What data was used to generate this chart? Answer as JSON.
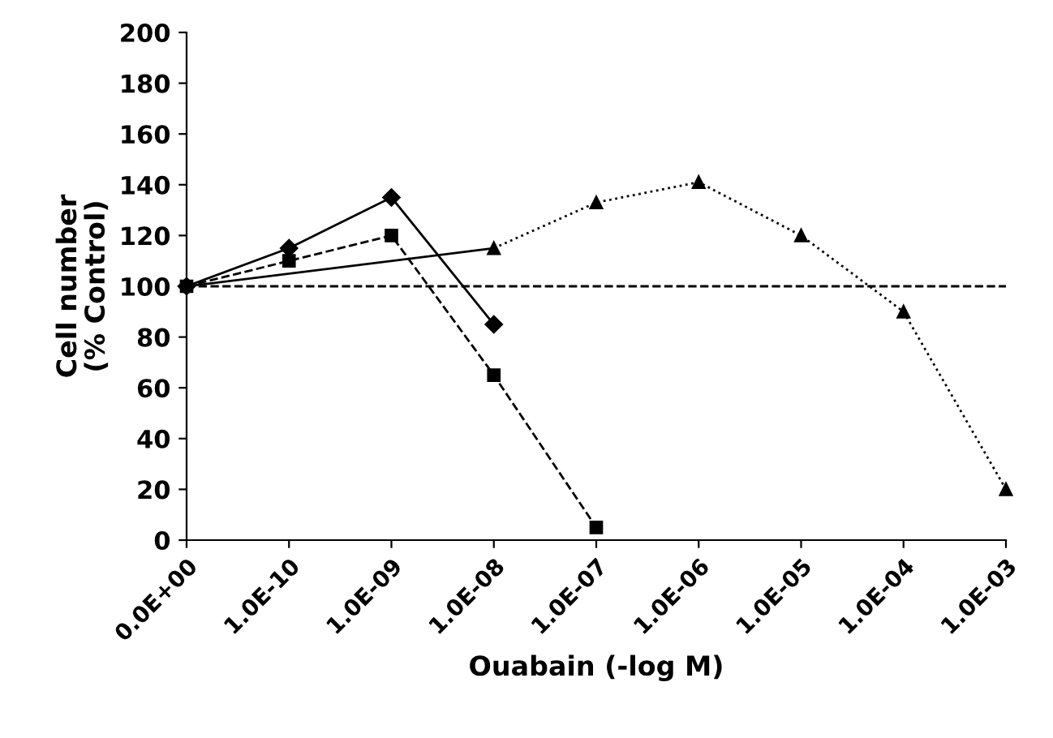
{
  "chart_data": {
    "type": "line",
    "xlabel": "Ouabain (-log M)",
    "ylabel": "Cell number\n(% Control)",
    "categories": [
      "0.0E+00",
      "1.0E-10",
      "1.0E-09",
      "1.0E-08",
      "1.0E-07",
      "1.0E-06",
      "1.0E-05",
      "1.0E-04",
      "1.0E-03"
    ],
    "series": [
      {
        "color": "#000000",
        "marker": "diamond",
        "line_style": "solid",
        "values": [
          100,
          115,
          135,
          85,
          null,
          null,
          null,
          null,
          null
        ]
      },
      {
        "color": "#000000",
        "marker": "square",
        "line_style": "dashed",
        "values": [
          100,
          110,
          120,
          65,
          5,
          null,
          null,
          null,
          null
        ]
      },
      {
        "color": "#000000",
        "line_style": "solid",
        "values": [
          100,
          null,
          null,
          115,
          null,
          null,
          null,
          null,
          null
        ]
      },
      {
        "color": "#000000",
        "marker": "triangle",
        "line_style": "dotted",
        "values": [
          null,
          null,
          null,
          115,
          133,
          141,
          120,
          90,
          20
        ]
      }
    ],
    "ylim": [
      0,
      200
    ],
    "yticks": [
      0,
      20,
      40,
      60,
      80,
      100,
      120,
      140,
      160,
      180,
      200
    ],
    "ref_lines": [
      {
        "axis": "y",
        "value": 100,
        "line_style": "dashed",
        "color": "#000000"
      }
    ],
    "grid": false,
    "legend": false
  }
}
